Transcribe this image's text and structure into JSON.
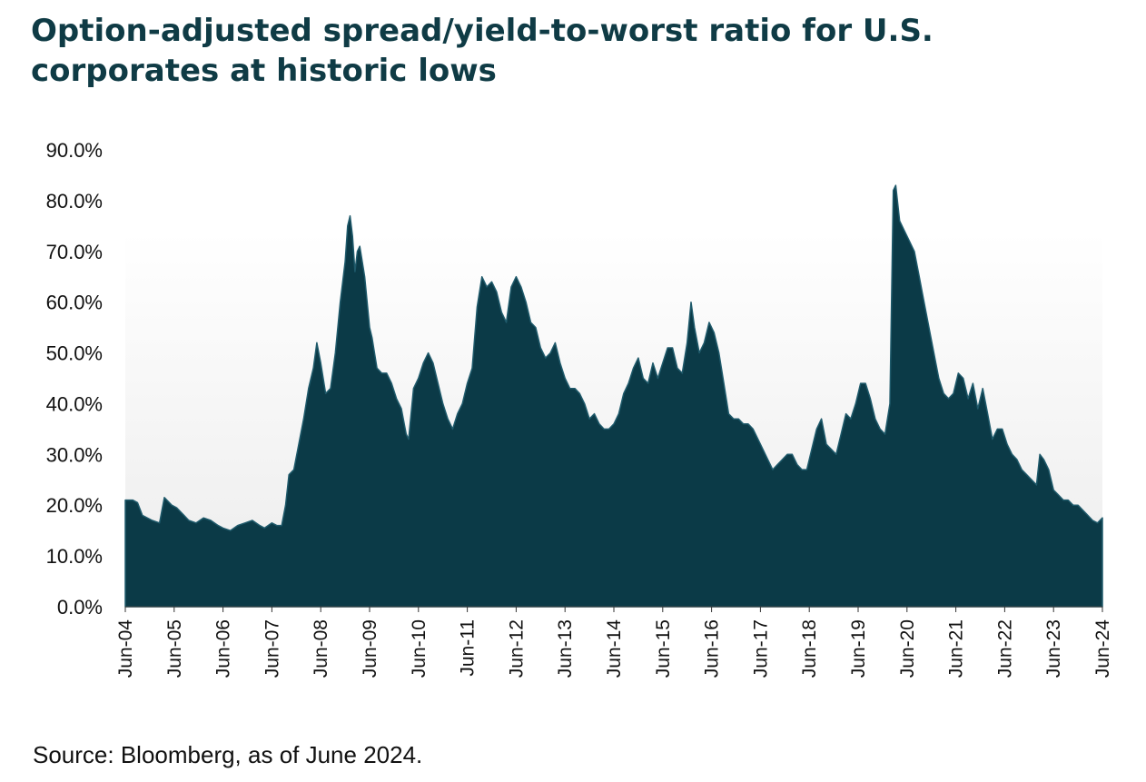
{
  "title": "Option-adjusted spread/yield-to-worst ratio for U.S. corporates at historic lows",
  "source": "Source: Bloomberg, as of June 2024.",
  "colors": {
    "area_fill": "#0b3a47",
    "area_edge": "#1f5a6b",
    "title": "#0f3b45"
  },
  "chart_data": {
    "type": "area",
    "title": "Option-adjusted spread/yield-to-worst ratio for U.S. corporates at historic lows",
    "xlabel": "",
    "ylabel": "",
    "ylim": [
      0,
      90
    ],
    "yticks": [
      "0.0%",
      "10.0%",
      "20.0%",
      "30.0%",
      "40.0%",
      "50.0%",
      "60.0%",
      "70.0%",
      "80.0%",
      "90.0%"
    ],
    "xticks": [
      "Jun-04",
      "Jun-05",
      "Jun-06",
      "Jun-07",
      "Jun-08",
      "Jun-09",
      "Jun-10",
      "Jun-11",
      "Jun-12",
      "Jun-13",
      "Jun-14",
      "Jun-15",
      "Jun-16",
      "Jun-17",
      "Jun-18",
      "Jun-19",
      "Jun-20",
      "Jun-21",
      "Jun-22",
      "Jun-23",
      "Jun-24"
    ],
    "grid": false,
    "legend": "none",
    "x_unit": "years since Jun-04",
    "series": [
      {
        "points": [
          [
            0.0,
            21.0
          ],
          [
            0.15,
            21.0
          ],
          [
            0.25,
            20.5
          ],
          [
            0.35,
            18.0
          ],
          [
            0.55,
            17.0
          ],
          [
            0.7,
            16.5
          ],
          [
            0.8,
            21.5
          ],
          [
            0.95,
            20.0
          ],
          [
            1.05,
            19.5
          ],
          [
            1.2,
            18.0
          ],
          [
            1.3,
            17.0
          ],
          [
            1.45,
            16.5
          ],
          [
            1.6,
            17.5
          ],
          [
            1.75,
            17.0
          ],
          [
            1.9,
            16.0
          ],
          [
            2.0,
            15.5
          ],
          [
            2.15,
            15.0
          ],
          [
            2.3,
            16.0
          ],
          [
            2.45,
            16.5
          ],
          [
            2.6,
            17.0
          ],
          [
            2.75,
            16.0
          ],
          [
            2.85,
            15.5
          ],
          [
            3.0,
            16.5
          ],
          [
            3.1,
            16.0
          ],
          [
            3.2,
            16.0
          ],
          [
            3.28,
            20.0
          ],
          [
            3.35,
            26.0
          ],
          [
            3.45,
            27.0
          ],
          [
            3.55,
            32.0
          ],
          [
            3.65,
            37.0
          ],
          [
            3.75,
            43.0
          ],
          [
            3.85,
            47.0
          ],
          [
            3.92,
            52.0
          ],
          [
            4.0,
            48.0
          ],
          [
            4.1,
            42.0
          ],
          [
            4.2,
            43.0
          ],
          [
            4.3,
            50.0
          ],
          [
            4.4,
            60.0
          ],
          [
            4.5,
            68.0
          ],
          [
            4.55,
            75.0
          ],
          [
            4.6,
            77.0
          ],
          [
            4.65,
            73.0
          ],
          [
            4.7,
            66.0
          ],
          [
            4.75,
            70.0
          ],
          [
            4.8,
            71.0
          ],
          [
            4.9,
            65.0
          ],
          [
            5.0,
            55.0
          ],
          [
            5.05,
            53.0
          ],
          [
            5.15,
            47.0
          ],
          [
            5.25,
            46.0
          ],
          [
            5.35,
            46.0
          ],
          [
            5.45,
            44.0
          ],
          [
            5.55,
            41.0
          ],
          [
            5.65,
            39.0
          ],
          [
            5.75,
            34.0
          ],
          [
            5.8,
            33.0
          ],
          [
            5.9,
            43.0
          ],
          [
            6.0,
            45.0
          ],
          [
            6.1,
            48.0
          ],
          [
            6.2,
            50.0
          ],
          [
            6.3,
            48.0
          ],
          [
            6.4,
            44.0
          ],
          [
            6.5,
            40.0
          ],
          [
            6.6,
            37.0
          ],
          [
            6.7,
            35.0
          ],
          [
            6.8,
            38.0
          ],
          [
            6.9,
            40.0
          ],
          [
            7.0,
            44.0
          ],
          [
            7.1,
            47.0
          ],
          [
            7.2,
            59.0
          ],
          [
            7.3,
            65.0
          ],
          [
            7.4,
            63.0
          ],
          [
            7.5,
            64.0
          ],
          [
            7.6,
            62.0
          ],
          [
            7.7,
            58.0
          ],
          [
            7.8,
            56.0
          ],
          [
            7.9,
            63.0
          ],
          [
            8.0,
            65.0
          ],
          [
            8.1,
            63.0
          ],
          [
            8.2,
            60.0
          ],
          [
            8.3,
            56.0
          ],
          [
            8.4,
            55.0
          ],
          [
            8.5,
            51.0
          ],
          [
            8.6,
            49.0
          ],
          [
            8.7,
            50.0
          ],
          [
            8.8,
            52.0
          ],
          [
            8.9,
            48.0
          ],
          [
            9.0,
            45.0
          ],
          [
            9.1,
            43.0
          ],
          [
            9.2,
            43.0
          ],
          [
            9.3,
            42.0
          ],
          [
            9.4,
            40.0
          ],
          [
            9.5,
            37.0
          ],
          [
            9.6,
            38.0
          ],
          [
            9.7,
            36.0
          ],
          [
            9.8,
            35.0
          ],
          [
            9.9,
            35.0
          ],
          [
            10.0,
            36.0
          ],
          [
            10.1,
            38.0
          ],
          [
            10.2,
            42.0
          ],
          [
            10.3,
            44.0
          ],
          [
            10.4,
            47.0
          ],
          [
            10.5,
            49.0
          ],
          [
            10.6,
            45.0
          ],
          [
            10.7,
            44.0
          ],
          [
            10.8,
            48.0
          ],
          [
            10.9,
            45.0
          ],
          [
            11.0,
            48.0
          ],
          [
            11.1,
            51.0
          ],
          [
            11.2,
            51.0
          ],
          [
            11.3,
            47.0
          ],
          [
            11.4,
            46.0
          ],
          [
            11.5,
            52.0
          ],
          [
            11.58,
            60.0
          ],
          [
            11.65,
            55.0
          ],
          [
            11.75,
            50.0
          ],
          [
            11.85,
            52.0
          ],
          [
            11.95,
            56.0
          ],
          [
            12.05,
            54.0
          ],
          [
            12.15,
            50.0
          ],
          [
            12.25,
            44.0
          ],
          [
            12.35,
            38.0
          ],
          [
            12.45,
            37.0
          ],
          [
            12.55,
            37.0
          ],
          [
            12.65,
            36.0
          ],
          [
            12.75,
            36.0
          ],
          [
            12.85,
            35.0
          ],
          [
            12.95,
            33.0
          ],
          [
            13.05,
            31.0
          ],
          [
            13.15,
            29.0
          ],
          [
            13.25,
            27.0
          ],
          [
            13.35,
            28.0
          ],
          [
            13.45,
            29.0
          ],
          [
            13.55,
            30.0
          ],
          [
            13.65,
            30.0
          ],
          [
            13.75,
            28.0
          ],
          [
            13.85,
            27.0
          ],
          [
            13.95,
            27.0
          ],
          [
            14.05,
            31.0
          ],
          [
            14.15,
            35.0
          ],
          [
            14.25,
            37.0
          ],
          [
            14.35,
            32.0
          ],
          [
            14.45,
            31.0
          ],
          [
            14.55,
            30.0
          ],
          [
            14.65,
            34.0
          ],
          [
            14.75,
            38.0
          ],
          [
            14.85,
            37.0
          ],
          [
            14.95,
            40.0
          ],
          [
            15.05,
            44.0
          ],
          [
            15.15,
            44.0
          ],
          [
            15.25,
            41.0
          ],
          [
            15.35,
            37.0
          ],
          [
            15.45,
            35.0
          ],
          [
            15.55,
            34.0
          ],
          [
            15.65,
            40.0
          ],
          [
            15.72,
            82.0
          ],
          [
            15.77,
            83.0
          ],
          [
            15.85,
            76.0
          ],
          [
            15.95,
            74.0
          ],
          [
            16.05,
            72.0
          ],
          [
            16.15,
            70.0
          ],
          [
            16.25,
            65.0
          ],
          [
            16.35,
            60.0
          ],
          [
            16.45,
            55.0
          ],
          [
            16.55,
            50.0
          ],
          [
            16.65,
            45.0
          ],
          [
            16.75,
            42.0
          ],
          [
            16.85,
            41.0
          ],
          [
            16.95,
            42.0
          ],
          [
            17.05,
            46.0
          ],
          [
            17.15,
            45.0
          ],
          [
            17.25,
            41.0
          ],
          [
            17.35,
            44.0
          ],
          [
            17.45,
            39.0
          ],
          [
            17.55,
            43.0
          ],
          [
            17.65,
            38.0
          ],
          [
            17.75,
            33.0
          ],
          [
            17.85,
            35.0
          ],
          [
            17.95,
            35.0
          ],
          [
            18.05,
            32.0
          ],
          [
            18.15,
            30.0
          ],
          [
            18.25,
            29.0
          ],
          [
            18.35,
            27.0
          ],
          [
            18.45,
            26.0
          ],
          [
            18.55,
            25.0
          ],
          [
            18.65,
            24.0
          ],
          [
            18.72,
            30.0
          ],
          [
            18.8,
            29.0
          ],
          [
            18.9,
            27.0
          ],
          [
            19.0,
            23.0
          ],
          [
            19.1,
            22.0
          ],
          [
            19.2,
            21.0
          ],
          [
            19.3,
            21.0
          ],
          [
            19.4,
            20.0
          ],
          [
            19.5,
            20.0
          ],
          [
            19.6,
            19.0
          ],
          [
            19.7,
            18.0
          ],
          [
            19.8,
            17.0
          ],
          [
            19.9,
            16.5
          ],
          [
            20.0,
            17.5
          ]
        ]
      }
    ]
  }
}
